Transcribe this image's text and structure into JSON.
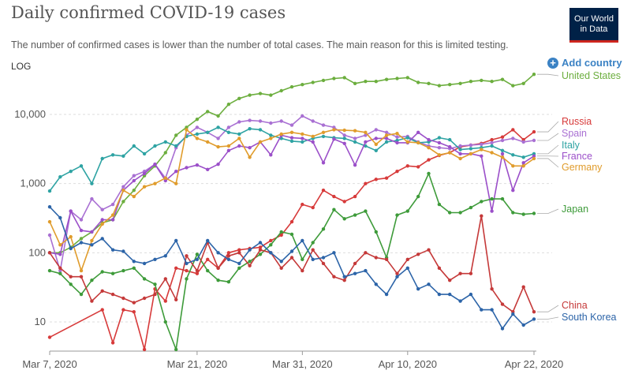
{
  "header": {
    "title": "Daily confirmed COVID-19 cases",
    "subtitle": "The number of confirmed cases is lower than the number of total cases. The main reason for this is limited testing.",
    "logo_line1": "Our World",
    "logo_line2": "in Data",
    "add_country_label": "Add country",
    "add_country_icon": "plus-circle-icon"
  },
  "chart_data": {
    "type": "line",
    "scale_label": "LOG",
    "y_scale": "log",
    "ylim": [
      4,
      60000
    ],
    "y_ticks": [
      {
        "value": 10,
        "label": "10"
      },
      {
        "value": 100,
        "label": "100"
      },
      {
        "value": 1000,
        "label": "1,000"
      },
      {
        "value": 10000,
        "label": "10,000"
      }
    ],
    "x_start": "Mar 7, 2020",
    "x_end": "Apr 22, 2020",
    "x_ticks": [
      "Mar 7, 2020",
      "Mar 21, 2020",
      "Mar 31, 2020",
      "Apr 10, 2020",
      "Apr 22, 2020"
    ],
    "grid": "horizontal dashed",
    "legend": "right, labels at line ends",
    "series": [
      {
        "name": "United States",
        "color": "#6cae3e",
        "values": [
          100,
          100,
          120,
          160,
          200,
          270,
          300,
          550,
          800,
          1300,
          1800,
          2800,
          5000,
          6500,
          8500,
          11000,
          9500,
          14000,
          17000,
          19000,
          20000,
          19000,
          22000,
          25000,
          27000,
          29000,
          31000,
          33000,
          34000,
          28000,
          30000,
          30000,
          32000,
          33000,
          34000,
          29000,
          28000,
          26000,
          27000,
          28000,
          30000,
          31000,
          30000,
          32000,
          26000,
          28000,
          38000
        ]
      },
      {
        "name": "Russia",
        "color": "#d73a3a",
        "values": [
          6,
          null,
          null,
          null,
          null,
          15,
          5,
          15,
          14,
          4,
          30,
          20,
          60,
          55,
          50,
          80,
          60,
          100,
          110,
          115,
          120,
          150,
          180,
          280,
          500,
          450,
          800,
          650,
          550,
          650,
          1000,
          1150,
          1200,
          1500,
          1800,
          1750,
          2200,
          2550,
          2800,
          3400,
          3600,
          3800,
          4300,
          4700,
          6000,
          4300,
          5600
        ]
      },
      {
        "name": "Spain",
        "color": "#a970d3",
        "values": [
          180,
          55,
          400,
          300,
          600,
          420,
          500,
          900,
          1300,
          1500,
          1900,
          1200,
          3300,
          5000,
          6500,
          5500,
          4500,
          6500,
          7800,
          8200,
          8000,
          7500,
          8000,
          7000,
          9500,
          8000,
          7000,
          6500,
          5000,
          4500,
          5000,
          6000,
          5500,
          4700,
          4800,
          4000,
          3500,
          3300,
          3200,
          3500,
          3600,
          3700,
          3900,
          4200,
          4500,
          4000,
          4200
        ]
      },
      {
        "name": "Italy",
        "color": "#2ea3a3",
        "values": [
          780,
          1250,
          1500,
          1800,
          1000,
          2300,
          2600,
          2500,
          3500,
          2700,
          3500,
          4000,
          3500,
          4800,
          5200,
          5500,
          6500,
          5500,
          5200,
          6200,
          6000,
          5000,
          4500,
          4100,
          4000,
          4500,
          4800,
          4600,
          4500,
          4000,
          3500,
          3000,
          4000,
          4200,
          4600,
          3900,
          4000,
          4600,
          4300,
          3100,
          3200,
          3300,
          3500,
          3000,
          2600,
          2400,
          2700
        ]
      },
      {
        "name": "France",
        "color": "#9b4fc9",
        "values": [
          100,
          95,
          400,
          210,
          200,
          300,
          300,
          800,
          1100,
          1400,
          1900,
          1100,
          1500,
          1700,
          1850,
          1600,
          1900,
          3000,
          3500,
          3300,
          4000,
          2600,
          5000,
          4600,
          4500,
          4000,
          2000,
          4400,
          3800,
          1850,
          4000,
          4500,
          4500,
          3900,
          3900,
          5500,
          4300,
          3900,
          3400,
          2700,
          2700,
          2500,
          400,
          2700,
          800,
          2000,
          2500
        ]
      },
      {
        "name": "Germany",
        "color": "#e09c2c",
        "values": [
          280,
          130,
          170,
          55,
          150,
          260,
          350,
          800,
          650,
          900,
          1000,
          1200,
          1000,
          6000,
          4500,
          4000,
          3400,
          3500,
          4500,
          2400,
          4000,
          4500,
          5200,
          5500,
          5200,
          4800,
          5500,
          6000,
          5900,
          5800,
          5500,
          3700,
          5000,
          5300,
          4000,
          3900,
          3300,
          2600,
          2800,
          2300,
          2700,
          3100,
          2800,
          2400,
          1800,
          1800,
          2300
        ]
      },
      {
        "name": "Japan",
        "color": "#3e9b3a",
        "values": [
          55,
          50,
          35,
          25,
          40,
          53,
          50,
          55,
          60,
          42,
          35,
          10,
          4,
          42,
          95,
          55,
          40,
          38,
          60,
          75,
          95,
          130,
          200,
          185,
          80,
          140,
          220,
          420,
          310,
          350,
          400,
          200,
          85,
          350,
          400,
          650,
          1400,
          500,
          380,
          380,
          450,
          550,
          600,
          600,
          380,
          360,
          370
        ]
      },
      {
        "name": "China",
        "color": "#c53939",
        "values": [
          100,
          60,
          45,
          45,
          20,
          28,
          25,
          22,
          19,
          22,
          25,
          42,
          21,
          90,
          55,
          140,
          60,
          90,
          100,
          65,
          110,
          100,
          60,
          85,
          55,
          110,
          70,
          45,
          40,
          70,
          100,
          85,
          80,
          50,
          80,
          95,
          110,
          60,
          40,
          50,
          50,
          340,
          30,
          18,
          14,
          32,
          14
        ]
      },
      {
        "name": "South Korea",
        "color": "#2c64a8",
        "values": [
          460,
          320,
          115,
          140,
          130,
          160,
          110,
          105,
          75,
          70,
          80,
          90,
          150,
          70,
          80,
          150,
          100,
          80,
          70,
          110,
          140,
          100,
          75,
          105,
          150,
          80,
          85,
          100,
          45,
          50,
          55,
          35,
          25,
          45,
          60,
          30,
          35,
          25,
          25,
          20,
          25,
          15,
          15,
          8,
          13,
          9,
          11
        ]
      }
    ]
  }
}
